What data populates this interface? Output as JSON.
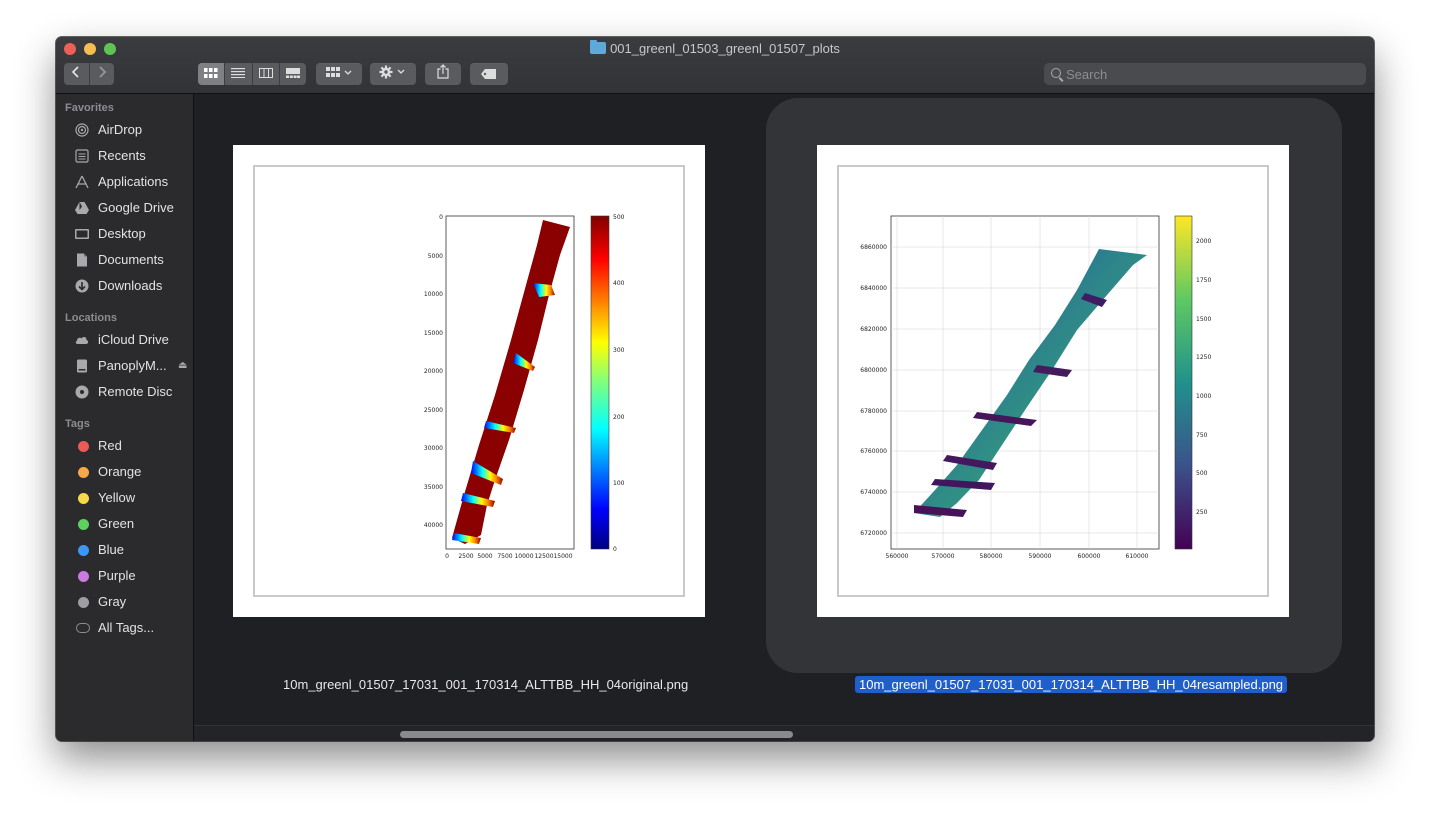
{
  "window": {
    "title": "001_greenl_01503_greenl_01507_plots"
  },
  "toolbar": {
    "back_icon": "chevron-left-icon",
    "forward_icon": "chevron-right-icon",
    "search_placeholder": "Search"
  },
  "sidebar": {
    "favorites_header": "Favorites",
    "favorites": [
      {
        "label": "AirDrop",
        "icon": "airdrop-icon"
      },
      {
        "label": "Recents",
        "icon": "recents-icon"
      },
      {
        "label": "Applications",
        "icon": "applications-icon"
      },
      {
        "label": "Google Drive",
        "icon": "google-drive-icon"
      },
      {
        "label": "Desktop",
        "icon": "desktop-icon"
      },
      {
        "label": "Documents",
        "icon": "documents-icon"
      },
      {
        "label": "Downloads",
        "icon": "downloads-icon"
      }
    ],
    "locations_header": "Locations",
    "locations": [
      {
        "label": "iCloud Drive",
        "icon": "icloud-icon"
      },
      {
        "label": "PanoplyM...",
        "icon": "disk-icon"
      },
      {
        "label": "Remote Disc",
        "icon": "disc-icon"
      }
    ],
    "tags_header": "Tags",
    "tags": [
      {
        "label": "Red",
        "color": "#ec5b56"
      },
      {
        "label": "Orange",
        "color": "#f6a84a"
      },
      {
        "label": "Yellow",
        "color": "#f7d84a"
      },
      {
        "label": "Green",
        "color": "#5dd15c"
      },
      {
        "label": "Blue",
        "color": "#3e96f6"
      },
      {
        "label": "Purple",
        "color": "#c97be0"
      },
      {
        "label": "Gray",
        "color": "#9f9fa3"
      }
    ],
    "all_tags": "All Tags..."
  },
  "files": [
    {
      "name": "10m_greenl_01507_17031_001_170314_ALTTBB_HH_04original.png",
      "selected": false
    },
    {
      "name": "10m_greenl_01507_17031_001_170314_ALTTBB_HH_04resampled.png",
      "selected": true
    }
  ],
  "plot_left": {
    "y_ticks": [
      "0",
      "5000",
      "10000",
      "15000",
      "20000",
      "25000",
      "30000",
      "35000",
      "40000"
    ],
    "x_ticks": [
      "0",
      "2500",
      "5000",
      "7500",
      "10000",
      "12500",
      "15000"
    ],
    "colorbar_ticks": [
      "500",
      "400",
      "300",
      "200",
      "100",
      "0"
    ]
  },
  "plot_right": {
    "y_ticks": [
      "6860000",
      "6840000",
      "6820000",
      "6800000",
      "6780000",
      "6760000",
      "6740000",
      "6720000"
    ],
    "x_ticks": [
      "560000",
      "570000",
      "580000",
      "590000",
      "600000",
      "610000"
    ],
    "colorbar_ticks": [
      "2000",
      "1750",
      "1500",
      "1250",
      "1000",
      "750",
      "500",
      "250"
    ]
  }
}
